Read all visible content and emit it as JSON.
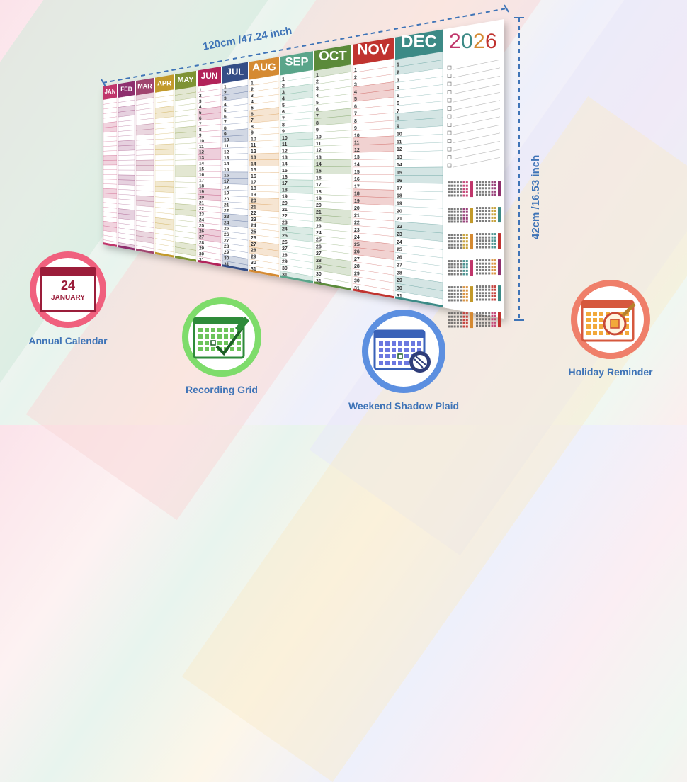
{
  "poster": {
    "year": "2026",
    "months": [
      "JAN",
      "FEB",
      "MAR",
      "APR",
      "MAY",
      "JUN",
      "JUL",
      "AUG",
      "SEP",
      "OCT",
      "NOV",
      "DEC"
    ],
    "month_colors": [
      "#c0366b",
      "#8e2f6e",
      "#a0456f",
      "#c29a2b",
      "#7f9334",
      "#b2235a",
      "#344d86",
      "#d58a32",
      "#5aa58a",
      "#5b8a3a",
      "#c0332f",
      "#3c8a86"
    ],
    "year_colors": [
      "#c0366b",
      "#3c8a86",
      "#d58a32",
      "#c0332f"
    ]
  },
  "dimensions": {
    "width_label": "120cm /47.24 inch",
    "height_label": "42cm /16.53 inch"
  },
  "features": [
    {
      "label": "Annual Calendar",
      "ring_color": "#f0607e",
      "icon": "calendar-date-icon",
      "date_day": "24",
      "date_month": "JANUARY"
    },
    {
      "label": "Recording Grid",
      "ring_color": "#7edc6b",
      "icon": "calendar-grid-pencil-icon"
    },
    {
      "label": "Weekend Shadow Plaid",
      "ring_color": "#5c8fe0",
      "icon": "calendar-magnifier-icon"
    },
    {
      "label": "Holiday Reminder",
      "ring_color": "#ef7f6a",
      "icon": "calendar-search-icon"
    }
  ]
}
